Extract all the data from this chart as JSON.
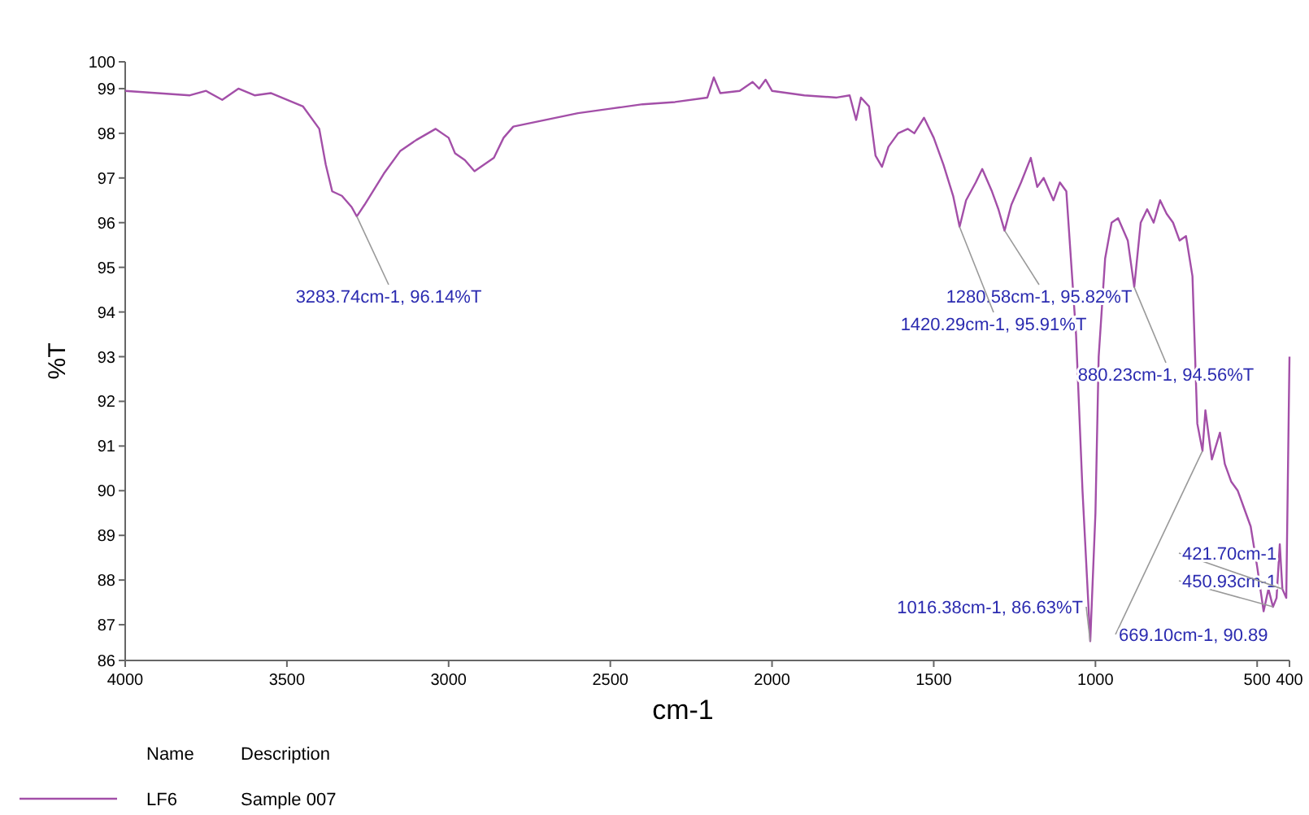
{
  "chart_data": {
    "type": "line",
    "xlabel": "cm-1",
    "ylabel": "%T",
    "legend_title": "Name",
    "legend": "bottom left",
    "grid": false,
    "marker": "none",
    "line_style": "solid",
    "xlim": [
      4000,
      400
    ],
    "xticks": [
      4000,
      3500,
      3000,
      2500,
      2000,
      1500,
      1000,
      500,
      400
    ],
    "ylim": [
      86.2,
      99.6
    ],
    "yticks": [
      {
        "value": 86.2,
        "label": "86"
      },
      87,
      88,
      89,
      90,
      91,
      92,
      93,
      94,
      95,
      96,
      97,
      98,
      99,
      {
        "value": 99.6,
        "label": "100"
      }
    ],
    "series": [
      {
        "name": "LF6",
        "color": "#a34fa8",
        "x": [
          4000,
          3900,
          3800,
          3750,
          3700,
          3650,
          3600,
          3550,
          3500,
          3450,
          3400,
          3380,
          3360,
          3330,
          3300,
          3284,
          3260,
          3200,
          3150,
          3100,
          3040,
          3000,
          2980,
          2950,
          2920,
          2890,
          2860,
          2830,
          2800,
          2700,
          2600,
          2500,
          2400,
          2300,
          2200,
          2180,
          2160,
          2100,
          2060,
          2040,
          2020,
          2000,
          1950,
          1900,
          1800,
          1760,
          1740,
          1725,
          1700,
          1680,
          1660,
          1640,
          1610,
          1580,
          1560,
          1530,
          1500,
          1470,
          1440,
          1420,
          1400,
          1370,
          1350,
          1320,
          1300,
          1281,
          1260,
          1230,
          1200,
          1180,
          1160,
          1130,
          1110,
          1090,
          1060,
          1040,
          1016,
          1000,
          990,
          970,
          950,
          930,
          900,
          880,
          860,
          840,
          820,
          800,
          780,
          760,
          740,
          720,
          700,
          685,
          669,
          660,
          640,
          615,
          600,
          580,
          560,
          540,
          520,
          500,
          480,
          465,
          451,
          440,
          430,
          422,
          410,
          400
        ],
        "values": [
          98.95,
          98.9,
          98.85,
          98.95,
          98.75,
          99.0,
          98.85,
          98.9,
          98.75,
          98.6,
          98.1,
          97.3,
          96.7,
          96.6,
          96.35,
          96.14,
          96.4,
          97.1,
          97.6,
          97.85,
          98.1,
          97.9,
          97.55,
          97.4,
          97.15,
          97.3,
          97.45,
          97.9,
          98.15,
          98.3,
          98.45,
          98.55,
          98.65,
          98.7,
          98.8,
          99.25,
          98.9,
          98.95,
          99.15,
          99.0,
          99.2,
          98.95,
          98.9,
          98.85,
          98.8,
          98.85,
          98.3,
          98.8,
          98.6,
          97.5,
          97.25,
          97.7,
          98.0,
          98.1,
          98.0,
          98.35,
          97.9,
          97.3,
          96.6,
          95.91,
          96.5,
          96.9,
          97.2,
          96.7,
          96.3,
          95.82,
          96.4,
          96.9,
          97.45,
          96.8,
          97.0,
          96.5,
          96.9,
          96.7,
          93.5,
          90.0,
          86.63,
          89.5,
          93.0,
          95.2,
          96.0,
          96.1,
          95.6,
          94.56,
          96.0,
          96.3,
          96.0,
          96.5,
          96.2,
          96.0,
          95.6,
          95.7,
          94.8,
          91.5,
          90.89,
          91.8,
          90.7,
          91.3,
          90.6,
          90.2,
          90.0,
          89.6,
          89.2,
          88.3,
          87.3,
          87.8,
          87.4,
          87.6,
          88.8,
          87.8,
          87.6,
          93.0
        ]
      }
    ],
    "annotations": [
      {
        "text": "3283.74cm-1, 96.14%T",
        "x": 3283.74,
        "y": 96.14
      },
      {
        "text": "1280.58cm-1, 95.82%T",
        "x": 1280.58,
        "y": 95.82
      },
      {
        "text": "1420.29cm-1, 95.91%T",
        "x": 1420.29,
        "y": 95.91
      },
      {
        "text": "880.23cm-1, 94.56%T",
        "x": 880.23,
        "y": 94.56
      },
      {
        "text": "1016.38cm-1, 86.63%T",
        "x": 1016.38,
        "y": 86.63
      },
      {
        "text": "669.10cm-1, 90.89",
        "x": 669.1,
        "y": 90.89
      },
      {
        "text": "450.93cm-1",
        "x": 450.93,
        "y": 87.4
      },
      {
        "text": "421.70cm-1",
        "x": 421.7,
        "y": 87.8
      },
      "Description",
      "Sample 007"
    ]
  }
}
